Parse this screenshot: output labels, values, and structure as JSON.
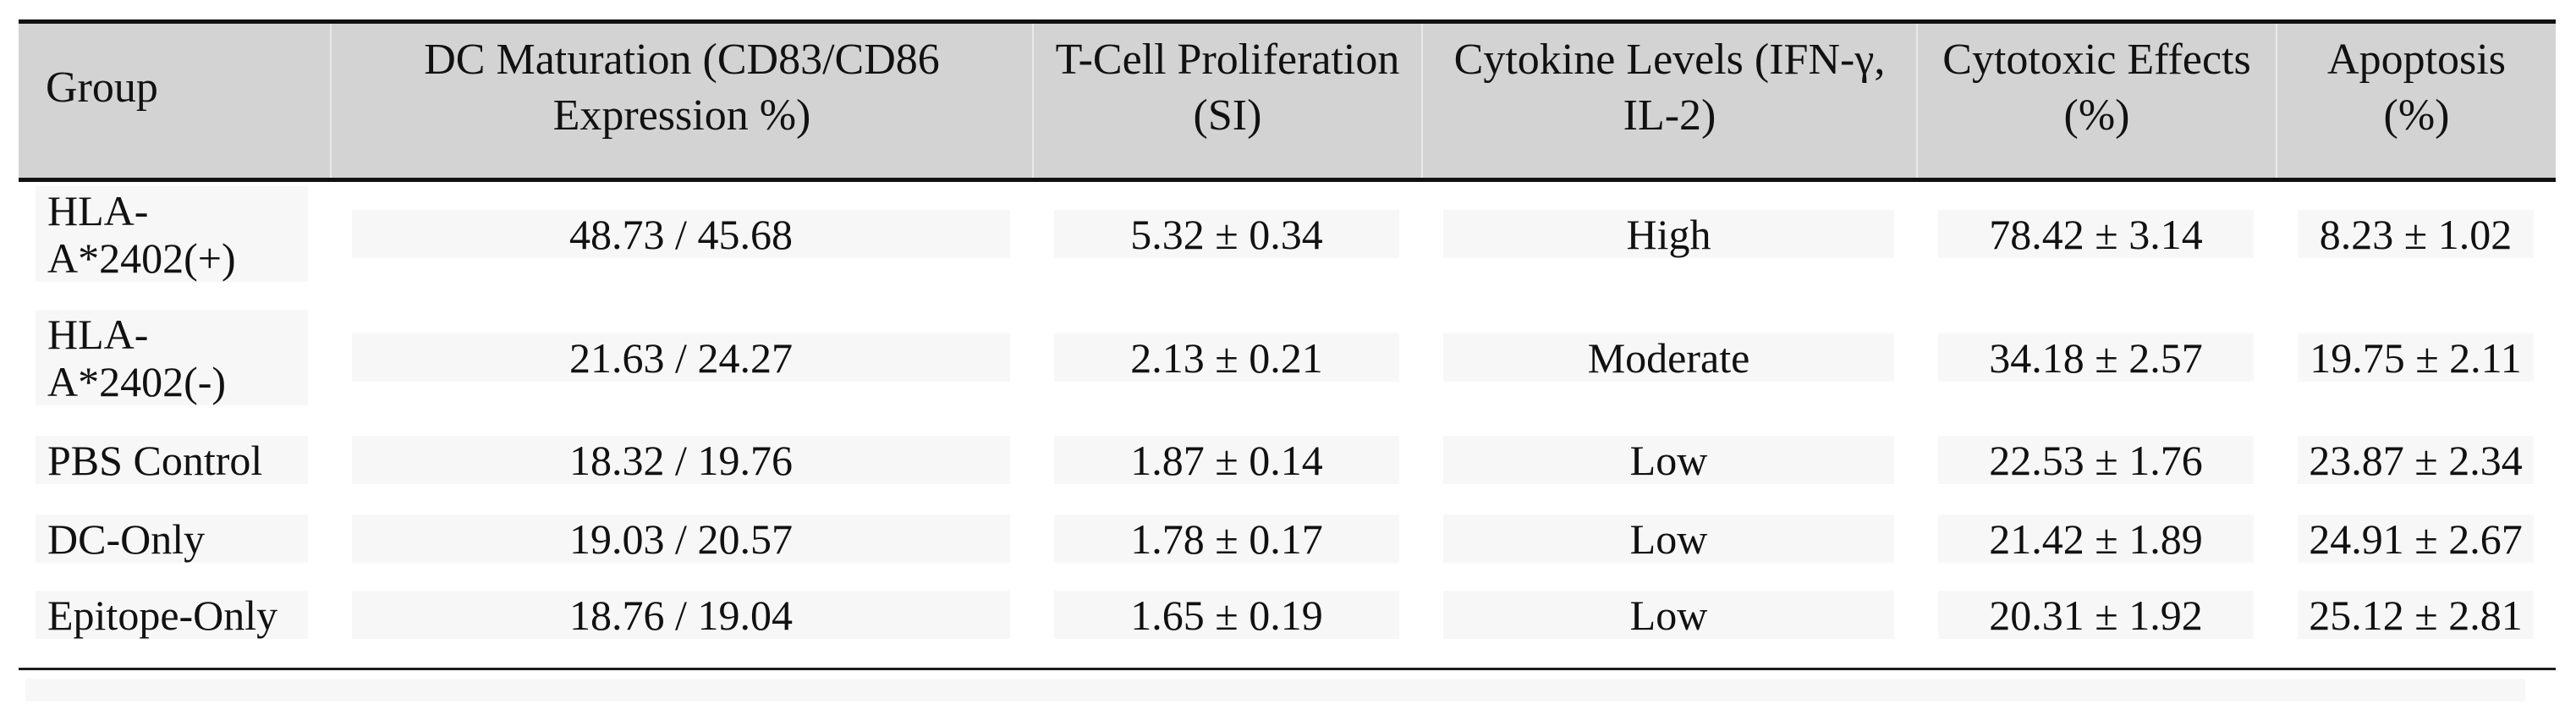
{
  "table": {
    "columns": [
      {
        "key": "group",
        "label": "Group"
      },
      {
        "key": "dc_maturation",
        "label": "DC Maturation (CD83/CD86\nExpression %)"
      },
      {
        "key": "t_cell_proliferation",
        "label": "T-Cell Proliferation\n(SI)"
      },
      {
        "key": "cytokine_levels",
        "label": "Cytokine Levels (IFN-γ,\nIL-2)"
      },
      {
        "key": "cytotoxic_effects",
        "label": "Cytotoxic Effects\n(%)"
      },
      {
        "key": "apoptosis",
        "label": "Apoptosis\n(%)"
      }
    ],
    "rows": [
      {
        "group": "HLA-\nA*2402(+)",
        "dc_maturation": "48.73 / 45.68",
        "t_cell_proliferation": "5.32 ± 0.34",
        "cytokine_levels": "High",
        "cytotoxic_effects": "78.42 ± 3.14",
        "apoptosis": "8.23 ± 1.02"
      },
      {
        "group": "HLA-\nA*2402(-)",
        "dc_maturation": "21.63 / 24.27",
        "t_cell_proliferation": "2.13 ± 0.21",
        "cytokine_levels": "Moderate",
        "cytotoxic_effects": "34.18 ± 2.57",
        "apoptosis": "19.75 ± 2.11"
      },
      {
        "group": "PBS Control",
        "dc_maturation": "18.32 / 19.76",
        "t_cell_proliferation": "1.87 ± 0.14",
        "cytokine_levels": "Low",
        "cytotoxic_effects": "22.53 ± 1.76",
        "apoptosis": "23.87 ± 2.34"
      },
      {
        "group": "DC-Only",
        "dc_maturation": "19.03 / 20.57",
        "t_cell_proliferation": "1.78 ± 0.17",
        "cytokine_levels": "Low",
        "cytotoxic_effects": "21.42 ± 1.89",
        "apoptosis": "24.91 ± 2.67"
      },
      {
        "group": "Epitope-Only",
        "dc_maturation": "18.76 / 19.04",
        "t_cell_proliferation": "1.65 ± 0.19",
        "cytokine_levels": "Low",
        "cytotoxic_effects": "20.31 ± 1.92",
        "apoptosis": "25.12 ± 2.81"
      }
    ],
    "colors": {
      "header_bg": "#d3d3d3",
      "cell_bg": "#f7f7f7",
      "border": "#111111"
    }
  }
}
